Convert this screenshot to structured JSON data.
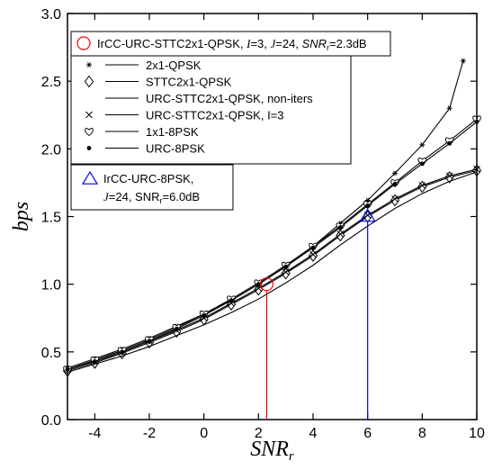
{
  "chart_data": {
    "type": "line",
    "xlabel": "SNR",
    "xlabel_sub": "r",
    "ylabel": "bps",
    "xlim": [
      -5,
      10
    ],
    "ylim": [
      0.0,
      3.0
    ],
    "xticks": [
      -4,
      -2,
      0,
      2,
      4,
      6,
      8,
      10
    ],
    "yticks": [
      "0.0",
      "0.5",
      "1.0",
      "1.5",
      "2.0",
      "2.5",
      "3.0"
    ],
    "grid": false,
    "series": [
      {
        "name": "2x1-QPSK",
        "marker": "star",
        "x": [
          -5,
          -4,
          -3,
          -2,
          -1,
          0,
          1,
          2,
          3,
          4,
          5,
          6,
          7,
          8,
          9,
          9.5
        ],
        "y": [
          0.38,
          0.45,
          0.52,
          0.6,
          0.69,
          0.78,
          0.88,
          1.0,
          1.13,
          1.28,
          1.45,
          1.62,
          1.82,
          2.03,
          2.3,
          2.65
        ]
      },
      {
        "name": "STTC2x1-QPSK",
        "marker": "diamond",
        "x": [
          -5,
          -4,
          -3,
          -2,
          -1,
          0,
          1,
          2,
          3,
          4,
          5,
          6,
          7,
          8,
          9,
          10
        ],
        "y": [
          0.36,
          0.42,
          0.49,
          0.57,
          0.65,
          0.74,
          0.85,
          0.96,
          1.08,
          1.21,
          1.36,
          1.5,
          1.62,
          1.72,
          1.79,
          1.84
        ]
      },
      {
        "name": "URC-STTC2x1-QPSK, non-iters",
        "marker": "none",
        "x": [
          -5,
          -4,
          -3,
          -2,
          -1,
          0,
          1,
          2,
          3,
          4,
          5,
          6,
          7,
          8,
          9,
          10
        ],
        "y": [
          0.35,
          0.41,
          0.47,
          0.54,
          0.62,
          0.7,
          0.79,
          0.89,
          1.01,
          1.14,
          1.29,
          1.43,
          1.56,
          1.67,
          1.76,
          1.83
        ]
      },
      {
        "name": "URC-STTC2x1-QPSK, I=3",
        "marker": "cross",
        "x": [
          -5,
          -4,
          -3,
          -2,
          -1,
          0,
          1,
          2,
          3,
          4,
          5,
          6,
          7,
          8,
          9,
          10
        ],
        "y": [
          0.37,
          0.43,
          0.5,
          0.58,
          0.66,
          0.75,
          0.86,
          0.97,
          1.09,
          1.22,
          1.37,
          1.51,
          1.63,
          1.73,
          1.8,
          1.85
        ]
      },
      {
        "name": "1x1-8PSK",
        "marker": "heart",
        "x": [
          -5,
          -4,
          -3,
          -2,
          -1,
          0,
          1,
          2,
          3,
          4,
          5,
          6,
          7,
          8,
          9,
          10
        ],
        "y": [
          0.37,
          0.44,
          0.51,
          0.59,
          0.68,
          0.78,
          0.89,
          1.01,
          1.14,
          1.28,
          1.43,
          1.59,
          1.75,
          1.91,
          2.06,
          2.22
        ]
      },
      {
        "name": "URC-8PSK",
        "marker": "dot",
        "x": [
          -5,
          -4,
          -3,
          -2,
          -1,
          0,
          1,
          2,
          3,
          4,
          5,
          6,
          7,
          8,
          9,
          10
        ],
        "y": [
          0.37,
          0.43,
          0.5,
          0.58,
          0.67,
          0.77,
          0.88,
          1.0,
          1.13,
          1.27,
          1.42,
          1.58,
          1.74,
          1.89,
          2.04,
          2.2
        ]
      }
    ],
    "annotations": [
      {
        "label_parts": [
          "IrCC-URC-STTC2x1-QPSK, ",
          "I",
          "=3, ",
          "J",
          "=24, ",
          "SNR",
          "r",
          "=2.3dB"
        ],
        "marker": "circle",
        "color": "#ff0000",
        "x": 2.3,
        "y": 1.0
      },
      {
        "label_line1": "IrCC-URC-8PSK,",
        "label_line2_parts": [
          "J",
          "=24, SNR",
          "r",
          "=6.0dB"
        ],
        "marker": "triangle",
        "color": "#0000ff",
        "x": 6.0,
        "y": 1.5
      }
    ]
  }
}
